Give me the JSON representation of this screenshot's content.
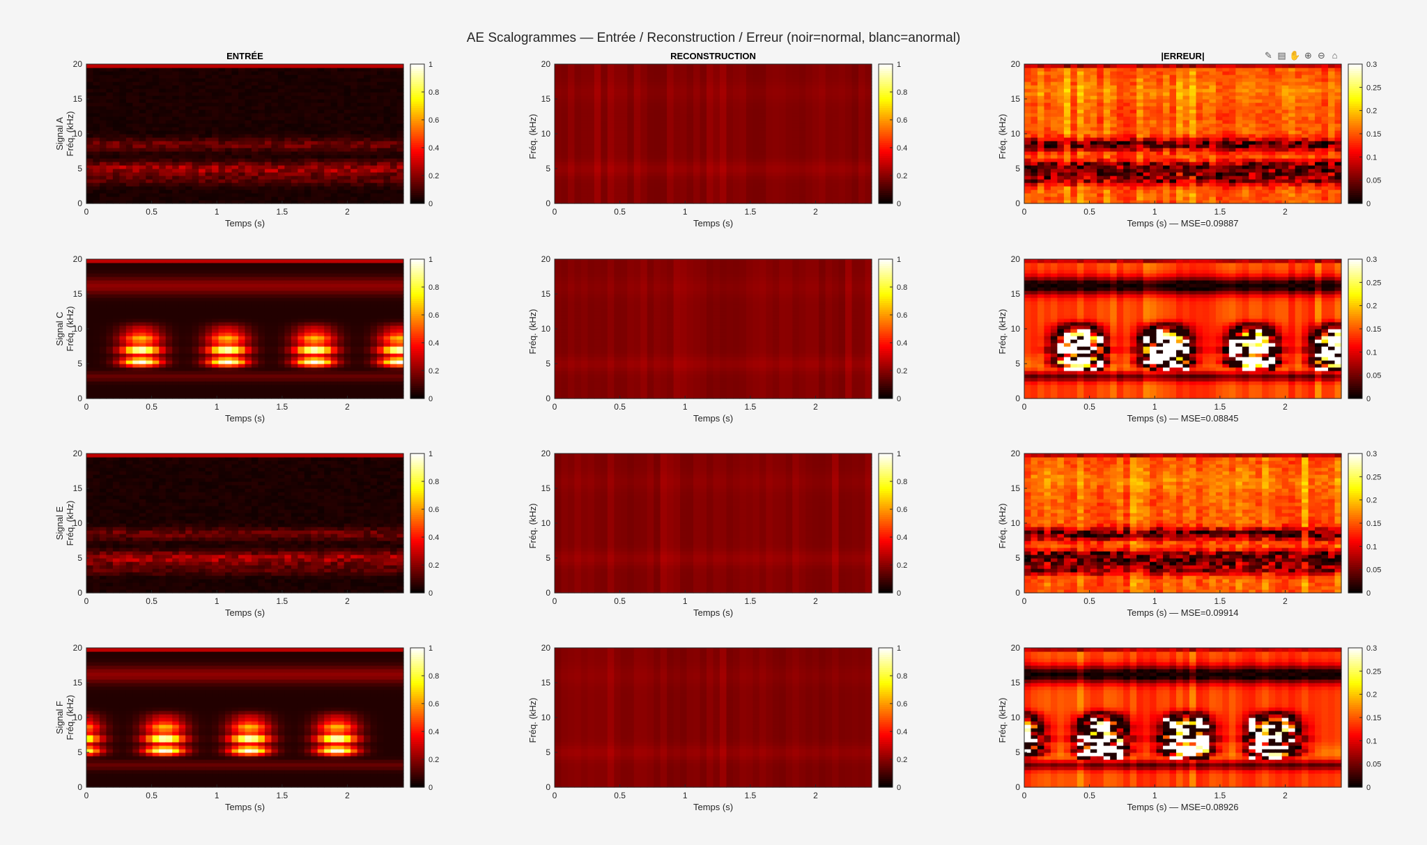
{
  "figure": {
    "title": "AE Scalogrammes — Entrée / Reconstruction / Erreur (noir=normal, blanc=anormal)"
  },
  "toolbar": {
    "items": [
      {
        "name": "brush-icon",
        "glyph": "✎"
      },
      {
        "name": "datatip-icon",
        "glyph": "▤"
      },
      {
        "name": "pan-icon",
        "glyph": "✋"
      },
      {
        "name": "zoom-in-icon",
        "glyph": "⊕"
      },
      {
        "name": "zoom-out-icon",
        "glyph": "⊖"
      },
      {
        "name": "home-icon",
        "glyph": "⌂"
      }
    ]
  },
  "colormap": "hot",
  "chart_data": {
    "type": "heatmap",
    "columns": [
      {
        "key": "input",
        "title": "ENTRÉE",
        "clim": [
          0,
          1
        ],
        "cbar_ticks": [
          "0",
          "0.2",
          "0.4",
          "0.6",
          "0.8",
          "1"
        ],
        "cbar_tick_values": [
          0,
          0.2,
          0.4,
          0.6,
          0.8,
          1
        ]
      },
      {
        "key": "recon",
        "title": "RECONSTRUCTION",
        "clim": [
          0,
          1
        ],
        "cbar_ticks": [
          "0",
          "0.2",
          "0.4",
          "0.6",
          "0.8",
          "1"
        ],
        "cbar_tick_values": [
          0,
          0.2,
          0.4,
          0.6,
          0.8,
          1
        ]
      },
      {
        "key": "error",
        "title": "|ERREUR|",
        "clim": [
          0,
          0.3
        ],
        "cbar_ticks": [
          "0",
          "0.05",
          "0.1",
          "0.15",
          "0.2",
          "0.25",
          "0.3"
        ],
        "cbar_tick_values": [
          0,
          0.05,
          0.1,
          0.15,
          0.2,
          0.25,
          0.3
        ]
      }
    ],
    "x_ticks": [
      "0",
      "0.5",
      "1",
      "1.5",
      "2"
    ],
    "x_tick_values": [
      0,
      0.5,
      1,
      1.5,
      2
    ],
    "xlim": [
      0,
      2.43
    ],
    "y_ticks": [
      "0",
      "5",
      "10",
      "15",
      "20"
    ],
    "y_tick_values": [
      0,
      5,
      10,
      15,
      20
    ],
    "ylim": [
      0,
      20
    ],
    "xlabel": "Temps (s)",
    "ylabel": "Fréq. (kHz)",
    "rows": [
      {
        "signal": "Signal A",
        "error_xlabel": "Temps (s) — MSE=0.09887",
        "mse": 0.09887,
        "anomalous": false
      },
      {
        "signal": "Signal C",
        "error_xlabel": "Temps (s) — MSE=0.08845",
        "mse": 0.08845,
        "anomalous": true,
        "burst_centers_s": [
          0.42,
          1.08,
          1.75,
          2.4
        ]
      },
      {
        "signal": "Signal E",
        "error_xlabel": "Temps (s) — MSE=0.09914",
        "mse": 0.09914,
        "anomalous": false
      },
      {
        "signal": "Signal F",
        "error_xlabel": "Temps (s) — MSE=0.08926",
        "mse": 0.08926,
        "anomalous": true,
        "burst_centers_s": [
          -0.05,
          0.6,
          1.25,
          1.92
        ]
      }
    ]
  }
}
